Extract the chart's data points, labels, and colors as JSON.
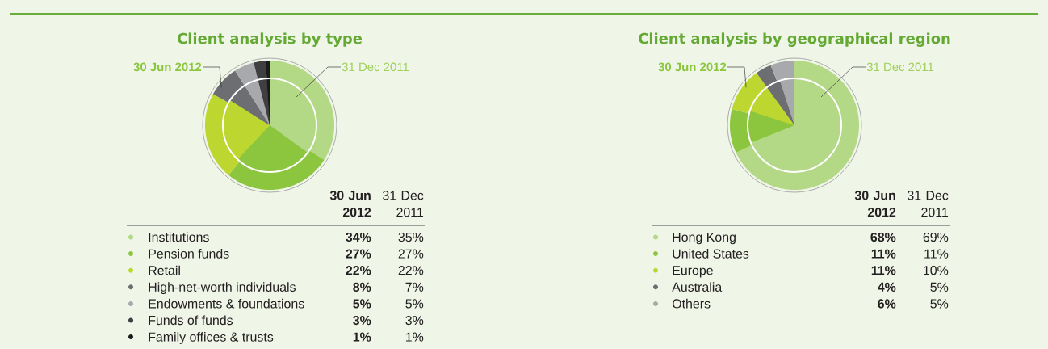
{
  "chart_data": [
    {
      "type": "donut",
      "title": "Client analysis by type",
      "legend": "bottom",
      "categories": [
        "Institutions",
        "Pension funds",
        "Retail",
        "High-net-worth individuals",
        "Endowments & foundations",
        "Funds of funds",
        "Family offices & trusts"
      ],
      "colors": [
        "#b3d886",
        "#8cc63f",
        "#bed630",
        "#6d6e71",
        "#a7a9ac",
        "#3f3f41",
        "#1a1a1a"
      ],
      "series": [
        {
          "name": "31 Dec 2011",
          "values": [
            35,
            27,
            22,
            7,
            5,
            3,
            1
          ],
          "value_labels": [
            "35%",
            "27%",
            "22%",
            "7%",
            "5%",
            "3%",
            "1%"
          ]
        },
        {
          "name": "30 Jun 2012",
          "values": [
            34,
            27,
            22,
            8,
            5,
            3,
            1
          ],
          "value_labels": [
            "34%",
            "27%",
            "22%",
            "8%",
            "5%",
            "3%",
            "1%"
          ]
        }
      ]
    },
    {
      "type": "donut",
      "title": "Client analysis by geographical region",
      "legend": "bottom",
      "categories": [
        "Hong Kong",
        "United States",
        "Europe",
        "Australia",
        "Others"
      ],
      "colors": [
        "#b3d886",
        "#8cc63f",
        "#bed630",
        "#6d6e71",
        "#a7a9ac"
      ],
      "series": [
        {
          "name": "31 Dec 2011",
          "values": [
            69,
            11,
            10,
            5,
            5
          ],
          "value_labels": [
            "69%",
            "11%",
            "10%",
            "5%",
            "5%"
          ]
        },
        {
          "name": "30 Jun 2012",
          "values": [
            68,
            11,
            11,
            4,
            6
          ],
          "value_labels": [
            "68%",
            "11%",
            "11%",
            "4%",
            "6%"
          ]
        }
      ]
    }
  ]
}
